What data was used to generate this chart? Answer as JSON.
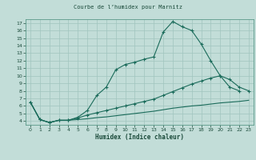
{
  "title": "Courbe de l’humidex pour Marnitz",
  "xlabel": "Humidex (Indice chaleur)",
  "bg_color": "#c2ddd8",
  "grid_color": "#a0c4be",
  "line_color": "#1a6b5a",
  "xlim": [
    -0.5,
    23.5
  ],
  "ylim": [
    3.5,
    17.5
  ],
  "xticks": [
    0,
    1,
    2,
    3,
    4,
    5,
    6,
    7,
    8,
    9,
    10,
    11,
    12,
    13,
    14,
    15,
    16,
    17,
    18,
    19,
    20,
    21,
    22,
    23
  ],
  "yticks": [
    4,
    5,
    6,
    7,
    8,
    9,
    10,
    11,
    12,
    13,
    14,
    15,
    16,
    17
  ],
  "line1_x": [
    0,
    1,
    2,
    3,
    4,
    5,
    6,
    7,
    8,
    9,
    10,
    11,
    12,
    13,
    14,
    15,
    16,
    17,
    18,
    19,
    20,
    21,
    22
  ],
  "line1_y": [
    6.5,
    4.2,
    3.8,
    4.1,
    4.1,
    4.5,
    5.4,
    7.4,
    8.5,
    10.8,
    11.5,
    11.8,
    12.2,
    12.5,
    15.8,
    17.2,
    16.5,
    16.0,
    14.2,
    12.0,
    10.0,
    8.5,
    8.0
  ],
  "line2_x": [
    0,
    1,
    2,
    3,
    4,
    5,
    6,
    7,
    8,
    9,
    10,
    11,
    12,
    13,
    14,
    15,
    16,
    17,
    18,
    19,
    20,
    21,
    22,
    23
  ],
  "line2_y": [
    6.5,
    4.2,
    3.8,
    4.1,
    4.1,
    4.4,
    4.8,
    5.1,
    5.4,
    5.7,
    6.0,
    6.3,
    6.6,
    6.9,
    7.4,
    7.9,
    8.4,
    8.9,
    9.3,
    9.7,
    10.0,
    9.5,
    8.5,
    8.0
  ],
  "line3_x": [
    0,
    1,
    2,
    3,
    4,
    5,
    6,
    7,
    8,
    9,
    10,
    11,
    12,
    13,
    14,
    15,
    16,
    17,
    18,
    19,
    20,
    21,
    22,
    23
  ],
  "line3_y": [
    6.5,
    4.2,
    3.8,
    4.1,
    4.1,
    4.2,
    4.3,
    4.45,
    4.55,
    4.7,
    4.85,
    5.0,
    5.15,
    5.3,
    5.5,
    5.7,
    5.85,
    6.0,
    6.1,
    6.25,
    6.4,
    6.5,
    6.6,
    6.75
  ]
}
